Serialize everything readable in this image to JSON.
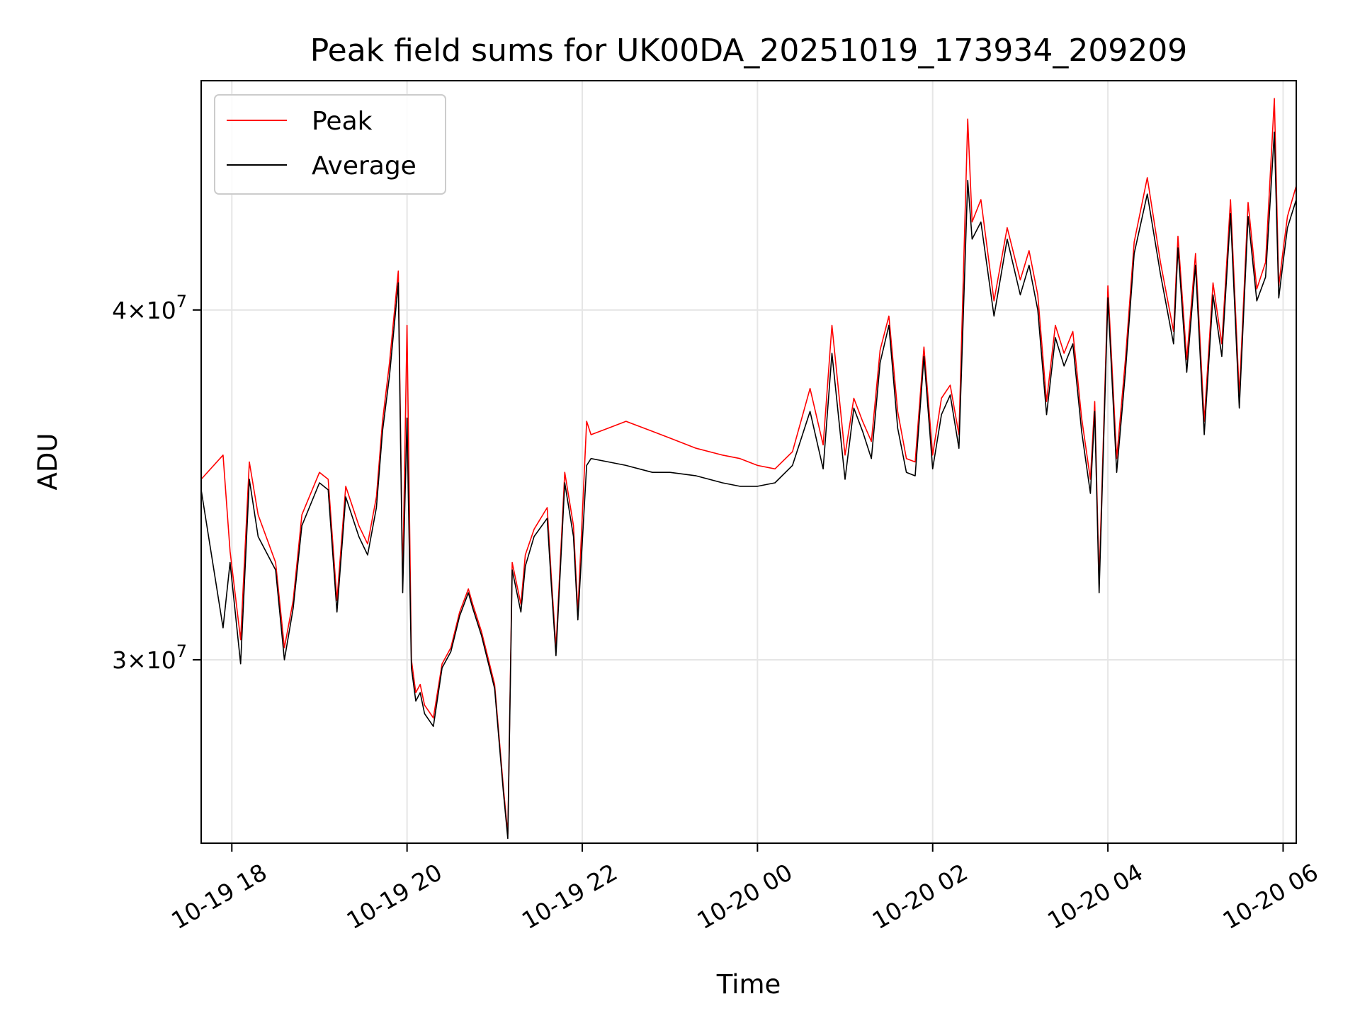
{
  "chart_data": {
    "type": "line",
    "title": "Peak field sums for UK00DA_20251019_173934_209209",
    "xlabel": "Time",
    "ylabel": "ADU",
    "yscale": "log",
    "ylim": [
      25800000,
      48300000
    ],
    "xlim_hours_from_2025_10_19_00": [
      17.65,
      30.15
    ],
    "x_ticks": [
      {
        "hour": 18,
        "label": "10-19 18"
      },
      {
        "hour": 20,
        "label": "10-19 20"
      },
      {
        "hour": 22,
        "label": "10-19 22"
      },
      {
        "hour": 24,
        "label": "10-20 00"
      },
      {
        "hour": 26,
        "label": "10-20 02"
      },
      {
        "hour": 28,
        "label": "10-20 04"
      },
      {
        "hour": 30,
        "label": "10-20 06"
      }
    ],
    "y_ticks": [
      {
        "value": 30000000,
        "mantissa": "3",
        "exponent": "7"
      },
      {
        "value": 40000000,
        "mantissa": "4",
        "exponent": "7"
      }
    ],
    "grid": true,
    "legend_position": "upper-left",
    "series": [
      {
        "name": "Peak",
        "color": "#ff0000",
        "x": [
          17.65,
          17.9,
          17.98,
          18.1,
          18.2,
          18.3,
          18.5,
          18.6,
          18.7,
          18.8,
          19.0,
          19.1,
          19.2,
          19.3,
          19.45,
          19.55,
          19.65,
          19.72,
          19.8,
          19.9,
          19.95,
          20.0,
          20.05,
          20.1,
          20.15,
          20.2,
          20.3,
          20.4,
          20.5,
          20.6,
          20.7,
          20.75,
          20.85,
          21.0,
          21.1,
          21.15,
          21.2,
          21.3,
          21.35,
          21.45,
          21.6,
          21.65,
          21.7,
          21.8,
          21.9,
          21.95,
          22.05,
          22.1,
          22.3,
          22.5,
          22.8,
          23.0,
          23.3,
          23.6,
          23.8,
          24.0,
          24.2,
          24.4,
          24.6,
          24.75,
          24.85,
          25.0,
          25.1,
          25.2,
          25.3,
          25.4,
          25.5,
          25.6,
          25.7,
          25.8,
          25.9,
          26.0,
          26.1,
          26.2,
          26.3,
          26.4,
          26.45,
          26.55,
          26.7,
          26.85,
          27.0,
          27.1,
          27.2,
          27.3,
          27.4,
          27.5,
          27.6,
          27.7,
          27.8,
          27.85,
          27.9,
          28.0,
          28.1,
          28.2,
          28.3,
          28.45,
          28.6,
          28.75,
          28.8,
          28.9,
          29.0,
          29.1,
          29.2,
          29.3,
          29.4,
          29.5,
          29.6,
          29.7,
          29.8,
          29.9,
          29.95,
          30.0,
          30.05,
          30.15
        ],
        "values": [
          34800000,
          35500000,
          32800000,
          30500000,
          35300000,
          33800000,
          32500000,
          30300000,
          31500000,
          33800000,
          35000000,
          34800000,
          31500000,
          34600000,
          33500000,
          33000000,
          34300000,
          36500000,
          38300000,
          41300000,
          32000000,
          39500000,
          30000000,
          29200000,
          29400000,
          28900000,
          28600000,
          29900000,
          30300000,
          31200000,
          31800000,
          31400000,
          30700000,
          29400000,
          27000000,
          26000000,
          32500000,
          31400000,
          32700000,
          33400000,
          34000000,
          32000000,
          30300000,
          35000000,
          33500000,
          31200000,
          36500000,
          36100000,
          36300000,
          36500000,
          36200000,
          36000000,
          35700000,
          35500000,
          35400000,
          35200000,
          35100000,
          35600000,
          37500000,
          35800000,
          39500000,
          35500000,
          37200000,
          36500000,
          35900000,
          38700000,
          39800000,
          36800000,
          35400000,
          35300000,
          38800000,
          35500000,
          37200000,
          37600000,
          36100000,
          46800000,
          43000000,
          43800000,
          40300000,
          42800000,
          41000000,
          42000000,
          40500000,
          37100000,
          39500000,
          38600000,
          39300000,
          36600000,
          34800000,
          37100000,
          32000000,
          40800000,
          35400000,
          38400000,
          42300000,
          44600000,
          41600000,
          39300000,
          42500000,
          38400000,
          41900000,
          36500000,
          40900000,
          38900000,
          43800000,
          37300000,
          43700000,
          40700000,
          41600000,
          47600000,
          40800000,
          42000000,
          43200000,
          44300000
        ]
      },
      {
        "name": "Average",
        "color": "#000000",
        "x": [
          17.65,
          17.9,
          17.98,
          18.1,
          18.2,
          18.3,
          18.5,
          18.6,
          18.7,
          18.8,
          19.0,
          19.1,
          19.2,
          19.3,
          19.45,
          19.55,
          19.65,
          19.72,
          19.8,
          19.9,
          19.95,
          20.0,
          20.05,
          20.1,
          20.15,
          20.2,
          20.3,
          20.4,
          20.5,
          20.6,
          20.7,
          20.75,
          20.85,
          21.0,
          21.1,
          21.15,
          21.2,
          21.3,
          21.35,
          21.45,
          21.6,
          21.65,
          21.7,
          21.8,
          21.9,
          21.95,
          22.05,
          22.1,
          22.3,
          22.5,
          22.8,
          23.0,
          23.3,
          23.6,
          23.8,
          24.0,
          24.2,
          24.4,
          24.6,
          24.75,
          24.85,
          25.0,
          25.1,
          25.2,
          25.3,
          25.4,
          25.5,
          25.6,
          25.7,
          25.8,
          25.9,
          26.0,
          26.1,
          26.2,
          26.3,
          26.4,
          26.45,
          26.55,
          26.7,
          26.85,
          27.0,
          27.1,
          27.2,
          27.3,
          27.4,
          27.5,
          27.6,
          27.7,
          27.8,
          27.85,
          27.9,
          28.0,
          28.1,
          28.2,
          28.3,
          28.45,
          28.6,
          28.75,
          28.8,
          28.9,
          29.0,
          29.1,
          29.2,
          29.3,
          29.4,
          29.5,
          29.6,
          29.7,
          29.8,
          29.9,
          29.95,
          30.0,
          30.05,
          30.15
        ],
        "values": [
          34500000,
          30800000,
          32500000,
          29900000,
          34800000,
          33200000,
          32300000,
          30000000,
          31300000,
          33500000,
          34700000,
          34500000,
          31200000,
          34300000,
          33200000,
          32700000,
          34000000,
          36200000,
          37900000,
          40900000,
          31700000,
          36600000,
          29800000,
          29000000,
          29200000,
          28700000,
          28400000,
          29800000,
          30200000,
          31100000,
          31700000,
          31300000,
          30600000,
          29300000,
          26900000,
          25900000,
          32300000,
          31200000,
          32400000,
          33200000,
          33700000,
          31800000,
          30100000,
          34700000,
          33200000,
          31000000,
          35200000,
          35400000,
          35300000,
          35200000,
          35000000,
          35000000,
          34900000,
          34700000,
          34600000,
          34600000,
          34700000,
          35200000,
          36800000,
          35100000,
          38600000,
          34800000,
          36900000,
          36200000,
          35400000,
          38300000,
          39500000,
          36300000,
          35000000,
          34900000,
          38500000,
          35100000,
          36700000,
          37300000,
          35700000,
          44500000,
          42400000,
          43000000,
          39800000,
          42400000,
          40500000,
          41500000,
          40000000,
          36700000,
          39100000,
          38200000,
          38900000,
          36200000,
          34400000,
          36800000,
          31700000,
          40400000,
          35000000,
          38000000,
          41900000,
          44000000,
          41200000,
          38900000,
          42100000,
          38000000,
          41500000,
          36100000,
          40500000,
          38500000,
          43300000,
          36900000,
          43200000,
          40300000,
          41100000,
          46300000,
          40400000,
          41600000,
          42800000,
          43800000
        ]
      }
    ]
  }
}
